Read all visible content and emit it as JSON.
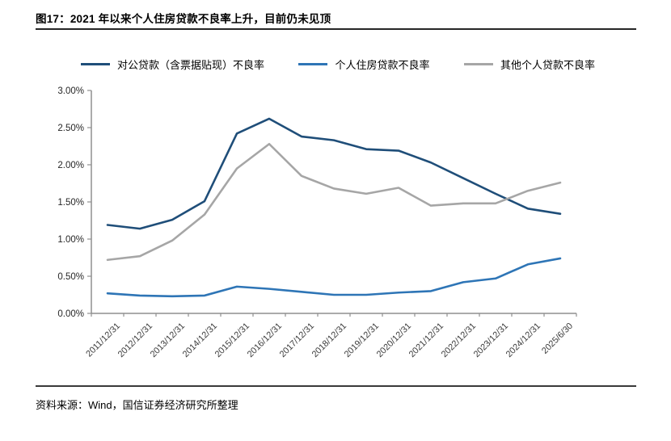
{
  "header": {
    "title": "图17：2021 年以来个人住房贷款不良率上升，目前仍未见顶"
  },
  "footer": {
    "source": "资料来源：Wind，国信证券经济研究所整理"
  },
  "chart_data": {
    "type": "line",
    "title": "图17：2021 年以来个人住房贷款不良率上升，目前仍未见顶",
    "xlabel": "",
    "ylabel": "",
    "ylim": [
      0,
      3
    ],
    "ytick_step": 0.5,
    "ytick_labels": [
      "0.00%",
      "0.50%",
      "1.00%",
      "1.50%",
      "2.00%",
      "2.50%",
      "3.00%"
    ],
    "grid": false,
    "legend_position": "top",
    "categories": [
      "2011/12/31",
      "2012/12/31",
      "2013/12/31",
      "2014/12/31",
      "2015/12/31",
      "2016/12/31",
      "2017/12/31",
      "2018/12/31",
      "2019/12/31",
      "2020/12/31",
      "2021/12/31",
      "2022/12/31",
      "2023/12/31",
      "2024/12/31",
      "2025/6/30"
    ],
    "series": [
      {
        "name": "对公贷款（含票据贴现）不良率",
        "color": "#1F4E79",
        "values": [
          1.19,
          1.14,
          1.26,
          1.51,
          2.42,
          2.62,
          2.38,
          2.33,
          2.21,
          2.19,
          2.03,
          1.82,
          1.61,
          1.41,
          1.34
        ]
      },
      {
        "name": "个人住房贷款不良率",
        "color": "#2E75B6",
        "values": [
          0.27,
          0.24,
          0.23,
          0.24,
          0.36,
          0.33,
          0.29,
          0.25,
          0.25,
          0.28,
          0.3,
          0.42,
          0.47,
          0.66,
          0.74
        ]
      },
      {
        "name": "其他个人贷款不良率",
        "color": "#A6A6A6",
        "values": [
          0.72,
          0.77,
          0.98,
          1.33,
          1.95,
          2.28,
          1.85,
          1.68,
          1.61,
          1.69,
          1.45,
          1.48,
          1.48,
          1.65,
          1.76
        ]
      }
    ]
  }
}
